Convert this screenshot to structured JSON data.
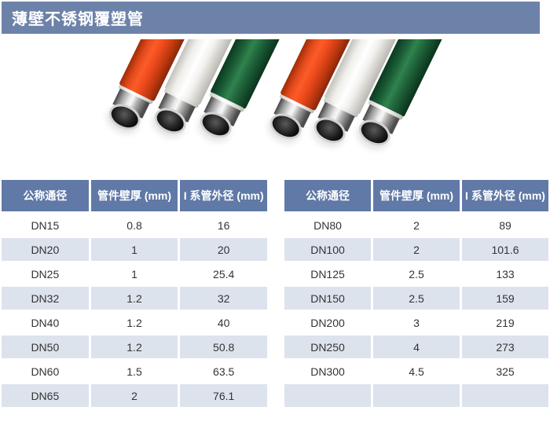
{
  "page": {
    "title": "薄壁不锈钢覆塑管"
  },
  "photo": {
    "pipes": [
      {
        "name": "red-coated-pipe",
        "color": "#ee4f1f"
      },
      {
        "name": "white-coated-pipe",
        "color": "#f4f3ef"
      },
      {
        "name": "green-coated-pipe",
        "color": "#1d6b40"
      }
    ],
    "steel_color": "#c9c9c9"
  },
  "tables": {
    "left": {
      "headers": [
        "公称通径",
        "管件壁厚 (mm)",
        "I 系管外径 (mm)"
      ],
      "rows": [
        [
          "DN15",
          "0.8",
          "16"
        ],
        [
          "DN20",
          "1",
          "20"
        ],
        [
          "DN25",
          "1",
          "25.4"
        ],
        [
          "DN32",
          "1.2",
          "32"
        ],
        [
          "DN40",
          "1.2",
          "40"
        ],
        [
          "DN50",
          "1.2",
          "50.8"
        ],
        [
          "DN60",
          "1.5",
          "63.5"
        ],
        [
          "DN65",
          "2",
          "76.1"
        ]
      ]
    },
    "right": {
      "headers": [
        "公称通径",
        "管件壁厚 (mm)",
        "I 系管外径 (mm)"
      ],
      "rows": [
        [
          "DN80",
          "2",
          "89"
        ],
        [
          "DN100",
          "2",
          "101.6"
        ],
        [
          "DN125",
          "2.5",
          "133"
        ],
        [
          "DN150",
          "2.5",
          "159"
        ],
        [
          "DN200",
          "3",
          "219"
        ],
        [
          "DN250",
          "4",
          "273"
        ],
        [
          "DN300",
          "4.5",
          "325"
        ],
        [
          "",
          "",
          ""
        ]
      ]
    }
  },
  "colors": {
    "title_bar": "#6d82a9",
    "table_header": "#6079a6",
    "row_shaded": "#dde3ed",
    "row_white": "#ffffff",
    "cell_text": "#333333"
  }
}
